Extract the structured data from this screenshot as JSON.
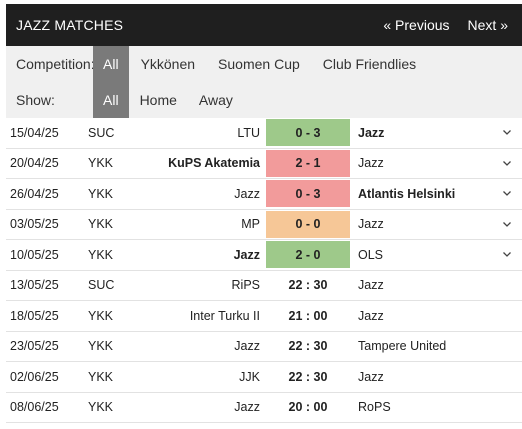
{
  "header": {
    "title": "JAZZ MATCHES",
    "prev_label": "« Previous",
    "next_label": "Next »"
  },
  "competition": {
    "label": "Competition:",
    "options": [
      "All",
      "Ykkönen",
      "Suomen Cup",
      "Club Friendlies"
    ],
    "selected": "All"
  },
  "show": {
    "label": "Show:",
    "options": [
      "All",
      "Home",
      "Away"
    ],
    "selected": "All"
  },
  "colors": {
    "win": "#9ec98a",
    "loss": "#f29b9b",
    "draw": "#f6c797",
    "header_bg": "#1f1f1f",
    "active_filter": "#7a7a7a"
  },
  "matches": [
    {
      "date": "15/04/25",
      "comp": "SUC",
      "home": "LTU",
      "score": "0 - 3",
      "away": "Jazz",
      "result": "w",
      "bold": "away",
      "expandable": true
    },
    {
      "date": "20/04/25",
      "comp": "YKK",
      "home": "KuPS Akatemia",
      "score": "2 - 1",
      "away": "Jazz",
      "result": "l",
      "bold": "home",
      "expandable": true
    },
    {
      "date": "26/04/25",
      "comp": "YKK",
      "home": "Jazz",
      "score": "0 - 3",
      "away": "Atlantis Helsinki",
      "result": "l",
      "bold": "away",
      "expandable": true
    },
    {
      "date": "03/05/25",
      "comp": "YKK",
      "home": "MP",
      "score": "0 - 0",
      "away": "Jazz",
      "result": "d",
      "bold": "none",
      "expandable": true
    },
    {
      "date": "10/05/25",
      "comp": "YKK",
      "home": "Jazz",
      "score": "2 - 0",
      "away": "OLS",
      "result": "w",
      "bold": "home",
      "expandable": true
    },
    {
      "date": "13/05/25",
      "comp": "SUC",
      "home": "RiPS",
      "score": "22 : 30",
      "away": "Jazz",
      "result": "time",
      "bold": "none",
      "expandable": false
    },
    {
      "date": "18/05/25",
      "comp": "YKK",
      "home": "Inter Turku II",
      "score": "21 : 00",
      "away": "Jazz",
      "result": "time",
      "bold": "none",
      "expandable": false
    },
    {
      "date": "23/05/25",
      "comp": "YKK",
      "home": "Jazz",
      "score": "22 : 30",
      "away": "Tampere United",
      "result": "time",
      "bold": "none",
      "expandable": false
    },
    {
      "date": "02/06/25",
      "comp": "YKK",
      "home": "JJK",
      "score": "22 : 30",
      "away": "Jazz",
      "result": "time",
      "bold": "none",
      "expandable": false
    },
    {
      "date": "08/06/25",
      "comp": "YKK",
      "home": "Jazz",
      "score": "20 : 00",
      "away": "RoPS",
      "result": "time",
      "bold": "none",
      "expandable": false
    }
  ]
}
